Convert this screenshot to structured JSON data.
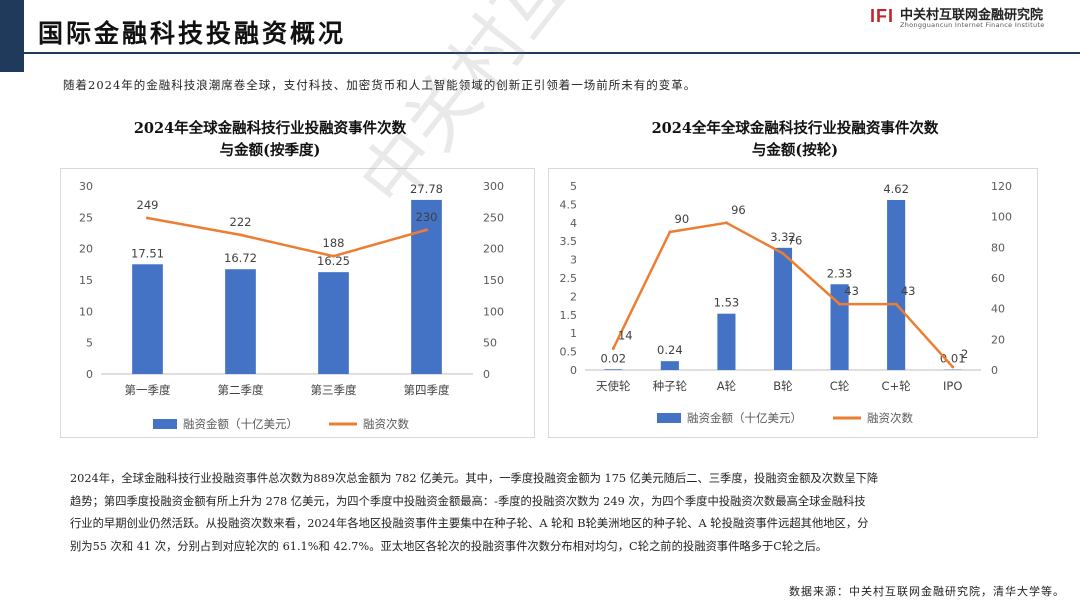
{
  "page": {
    "title": "国际金融科技投融资概况",
    "intro": "随着2024年的金融科技浪潮席卷全球，支付科技、加密货币和人工智能领域的创新正引领着一场前所未有的变革。",
    "body_paragraphs": [
      "2024年，全球金融科技行业投融资事件总次数为889次总金额为 782 亿美元。其中，一季度投融资金额为 175 亿美元随后二、三季度，投融资金额及次数呈下降",
      "趋势；第四季度投融资金额有所上升为 278 亿美元，为四个季度中投融资金额最高：-季度的投融资次数为 249 次，为四个季度中投融资次数最高全球金融科技",
      "行业的早期创业仍然活跃。从投融资次数来看，2024年各地区投融资事件主要集中在种子轮、A 轮和 B轮美洲地区的种子轮、A 轮投融资事件远超其他地区，分",
      "别为55 次和 41 次，分别占到对应轮次的 61.1%和 42.7%。亚太地区各轮次的投融资事件次数分布相对均匀，C轮之前的投融资事件略多于C轮之后。"
    ],
    "source": "数据来源：中关村互联网金融研究院，清华大学等。",
    "watermark": "中关村互联网金融研究院"
  },
  "logo": {
    "mark": "IFI",
    "name_cn": "中关村互联网金融研究院",
    "name_en": "Zhongguancun Internet Finance Institute"
  },
  "colors": {
    "bar": "#4472c4",
    "line": "#ed7d31",
    "header": "#1f3a5a"
  },
  "chart_data": [
    {
      "type": "bar",
      "title_lines": [
        "2024年全球金融科技行业投融资事件次数",
        "与金额(按季度)"
      ],
      "categories": [
        "第一季度",
        "第二季度",
        "第三季度",
        "第四季度"
      ],
      "series": [
        {
          "name": "融资金额（十亿美元）",
          "type": "bar",
          "axis": "left",
          "values": [
            17.51,
            16.72,
            16.25,
            27.78
          ]
        },
        {
          "name": "融资次数",
          "type": "line",
          "axis": "right",
          "values": [
            249,
            222,
            188,
            230
          ]
        }
      ],
      "ylim_left": [
        0,
        30
      ],
      "yticks_left": [
        0,
        5,
        10,
        15,
        20,
        25,
        30
      ],
      "ylim_right": [
        0,
        300
      ],
      "yticks_right": [
        0,
        50,
        100,
        150,
        200,
        250,
        300
      ],
      "legend": "bottom",
      "grid": false
    },
    {
      "type": "bar",
      "title_lines": [
        "2024全年全球金融科技行业投融资事件次数",
        "与金额(按轮)"
      ],
      "categories": [
        "天使轮",
        "种子轮",
        "A轮",
        "B轮",
        "C轮",
        "C+轮",
        "IPO"
      ],
      "series": [
        {
          "name": "融资金额（十亿美元）",
          "type": "bar",
          "axis": "left",
          "values": [
            0.02,
            0.24,
            1.53,
            3.32,
            2.33,
            4.62,
            0.01
          ]
        },
        {
          "name": "融资次数",
          "type": "line",
          "axis": "right",
          "values": [
            14,
            90,
            96,
            76,
            43,
            43,
            2
          ]
        }
      ],
      "ylim_left": [
        0,
        5
      ],
      "yticks_left": [
        "0",
        "0.5",
        "1",
        "1.5",
        "2",
        "2.5",
        "3",
        "3.5",
        "4",
        "4.5",
        "5"
      ],
      "ylim_right": [
        0,
        120
      ],
      "yticks_right": [
        0,
        20,
        40,
        60,
        80,
        100,
        120
      ],
      "legend": "bottom",
      "grid": false
    }
  ]
}
